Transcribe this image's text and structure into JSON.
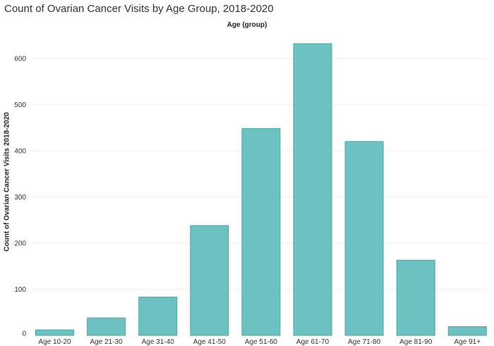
{
  "chart_data": {
    "type": "bar",
    "title": "Count of Ovarian Cancer Visits by Age Group, 2018-2020",
    "xlabel": "Age (group)",
    "ylabel": "Count of Ovarian Cancer Visits 2018-2020",
    "categories": [
      "Age 10-20",
      "Age 21-30",
      "Age 31-40",
      "Age 41-50",
      "Age 51-60",
      "Age 61-70",
      "Age 71-80",
      "Age 81-90",
      "Age 91+"
    ],
    "values": [
      12,
      38,
      83,
      238,
      448,
      632,
      420,
      163,
      19
    ],
    "ylim": [
      0,
      660
    ],
    "yticks": [
      0,
      100,
      200,
      300,
      400,
      500,
      600
    ],
    "grid": true,
    "legend": "none",
    "bar_color": "#6cc2c0",
    "bar_stroke": "#4aa9a6"
  }
}
